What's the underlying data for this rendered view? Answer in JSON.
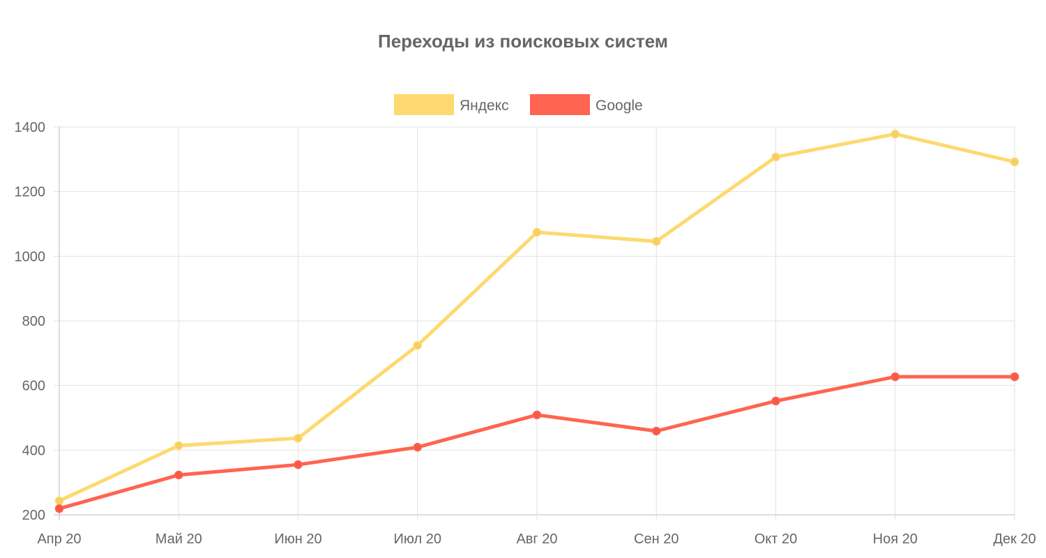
{
  "chart_data": {
    "type": "line",
    "title": "Переходы из поисковых систем",
    "categories": [
      "Апр 20",
      "Май 20",
      "Июн 20",
      "Июл 20",
      "Авг 20",
      "Сен 20",
      "Окт 20",
      "Ноя 20",
      "Дек 20"
    ],
    "ylim": [
      200,
      1400
    ],
    "yticks": [
      200,
      400,
      600,
      800,
      1000,
      1200,
      1400
    ],
    "grid": true,
    "legend_position": "top",
    "series": [
      {
        "name": "Яндекс",
        "color": "#fdd96f",
        "point_color": "#f5cf63",
        "values": [
          243,
          414,
          437,
          724,
          1074,
          1046,
          1307,
          1378,
          1292
        ]
      },
      {
        "name": "Google",
        "color": "#ff6450",
        "point_color": "#f55a47",
        "values": [
          219,
          323,
          355,
          409,
          509,
          459,
          552,
          627,
          627
        ]
      }
    ]
  }
}
